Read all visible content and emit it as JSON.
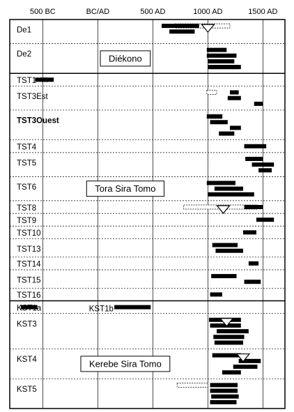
{
  "chart_data": {
    "type": "range-bar",
    "title": "",
    "xlabel": "",
    "ylabel": "",
    "xlim": [
      -800,
      1700
    ],
    "ticks": [
      {
        "value": -500,
        "label": "500 BC"
      },
      {
        "value": 0,
        "label": "BC/AD"
      },
      {
        "value": 500,
        "label": "500 AD"
      },
      {
        "value": 1000,
        "label": "1000 AD"
      },
      {
        "value": 1500,
        "label": "1500 AD"
      }
    ],
    "groups": [
      {
        "label": "De1",
        "bold": false,
        "rows": 3
      },
      {
        "label": "De2",
        "bold": false,
        "rows": 4
      },
      {
        "label": "TST1",
        "bold": false,
        "rows": 1
      },
      {
        "label": "TST3Est",
        "bold": false,
        "rows": 3
      },
      {
        "label": "TST3Ouest",
        "bold": true,
        "rows": 4
      },
      {
        "label": "TST4",
        "bold": false,
        "rows": 1
      },
      {
        "label": "TST5",
        "bold": false,
        "rows": 3
      },
      {
        "label": "TST6",
        "bold": false,
        "rows": 3
      },
      {
        "label": "TST8",
        "bold": false,
        "rows": 1
      },
      {
        "label": "TST9",
        "bold": false,
        "rows": 1
      },
      {
        "label": "TST10",
        "bold": false,
        "rows": 1
      },
      {
        "label": "TST13",
        "bold": false,
        "rows": 2
      },
      {
        "label": "TST14",
        "bold": false,
        "rows": 1
      },
      {
        "label": "TST15",
        "bold": false,
        "rows": 2
      },
      {
        "label": "TST16",
        "bold": false,
        "rows": 1
      },
      {
        "label": "KST1a",
        "bold": false,
        "rows": 1
      },
      {
        "label": "KST3",
        "bold": false,
        "rows": 5
      },
      {
        "label": "KST4",
        "bold": false,
        "rows": 4
      },
      {
        "label": "KST5",
        "bold": false,
        "rows": 4
      }
    ],
    "extra_labels": [
      {
        "label": "KST1b",
        "group": "KST1a"
      }
    ],
    "zones": [
      {
        "label": "Diékono",
        "group": "De2"
      },
      {
        "label": "Tora Sira Tomo",
        "group": "TST6"
      },
      {
        "label": "Kerebe Sira Tomo",
        "group": "KST4"
      }
    ],
    "solid_bars": [
      {
        "group": "De1",
        "start": 580,
        "end": 920
      },
      {
        "group": "De1",
        "start": 650,
        "end": 880
      },
      {
        "group": "De2",
        "start": 990,
        "end": 1170
      },
      {
        "group": "De2",
        "start": 990,
        "end": 1260
      },
      {
        "group": "De2",
        "start": 1000,
        "end": 1240
      },
      {
        "group": "De2",
        "start": 1000,
        "end": 1300
      },
      {
        "group": "De2",
        "start": 1020,
        "end": 1280
      },
      {
        "group": "TST1",
        "start": -570,
        "end": -400
      },
      {
        "group": "TST3Est",
        "start": 1200,
        "end": 1280
      },
      {
        "group": "TST3Est",
        "start": 1180,
        "end": 1300
      },
      {
        "group": "TST3Est",
        "start": 1420,
        "end": 1500
      },
      {
        "group": "TST3Ouest",
        "start": 990,
        "end": 1130
      },
      {
        "group": "TST3Ouest",
        "start": 1020,
        "end": 1180
      },
      {
        "group": "TST3Ouest",
        "start": 1200,
        "end": 1300
      },
      {
        "group": "TST3Ouest",
        "start": 1100,
        "end": 1240
      },
      {
        "group": "TST4",
        "start": 1330,
        "end": 1530
      },
      {
        "group": "TST5",
        "start": 1340,
        "end": 1500
      },
      {
        "group": "TST5",
        "start": 1400,
        "end": 1600
      },
      {
        "group": "TST5",
        "start": 1460,
        "end": 1580
      },
      {
        "group": "TST6",
        "start": 990,
        "end": 1250
      },
      {
        "group": "TST6",
        "start": 1060,
        "end": 1320
      },
      {
        "group": "TST6",
        "start": 1000,
        "end": 1420
      },
      {
        "group": "TST8",
        "start": 1330,
        "end": 1500
      },
      {
        "group": "TST9",
        "start": 1440,
        "end": 1600
      },
      {
        "group": "TST10",
        "start": 1320,
        "end": 1440
      },
      {
        "group": "TST13",
        "start": 1040,
        "end": 1270
      },
      {
        "group": "TST13",
        "start": 1070,
        "end": 1320
      },
      {
        "group": "TST14",
        "start": 1370,
        "end": 1460
      },
      {
        "group": "TST15",
        "start": 1030,
        "end": 1260
      },
      {
        "group": "TST15",
        "start": 1330,
        "end": 1480
      },
      {
        "group": "TST16",
        "start": 1020,
        "end": 1130
      },
      {
        "group": "KST1a",
        "start": -700,
        "end": -550
      },
      {
        "group": "KST1a",
        "start": 150,
        "end": 480
      },
      {
        "group": "KST3",
        "start": 1010,
        "end": 1300
      },
      {
        "group": "KST3",
        "start": 1020,
        "end": 1300
      },
      {
        "group": "KST3",
        "start": 1080,
        "end": 1370
      },
      {
        "group": "KST3",
        "start": 1050,
        "end": 1330
      },
      {
        "group": "KST3",
        "start": 1060,
        "end": 1320
      },
      {
        "group": "KST4",
        "start": 1040,
        "end": 1300
      },
      {
        "group": "KST4",
        "start": 1280,
        "end": 1480
      },
      {
        "group": "KST4",
        "start": 1230,
        "end": 1450
      },
      {
        "group": "KST4",
        "start": 1130,
        "end": 1300
      },
      {
        "group": "KST5",
        "start": 1020,
        "end": 1270
      },
      {
        "group": "KST5",
        "start": 1020,
        "end": 1270
      },
      {
        "group": "KST5",
        "start": 1030,
        "end": 1280
      },
      {
        "group": "KST5",
        "start": 1020,
        "end": 1260
      }
    ],
    "dashed_bars": [
      {
        "group": "De1",
        "start": 700,
        "end": 1200
      },
      {
        "group": "TST1",
        "start": -520,
        "end": -450
      },
      {
        "group": "TST3Est",
        "start": 990,
        "end": 1080
      },
      {
        "group": "TST3Ouest",
        "start": 1020,
        "end": 1130
      },
      {
        "group": "TST8",
        "start": 780,
        "end": 1450
      },
      {
        "group": "KST5",
        "start": 720,
        "end": 1000
      }
    ],
    "triangles": [
      {
        "group": "De1",
        "value": 1000
      },
      {
        "group": "TST8",
        "value": 1140
      },
      {
        "group": "KST3",
        "value": 1170
      },
      {
        "group": "KST4",
        "value": 1320
      }
    ]
  }
}
